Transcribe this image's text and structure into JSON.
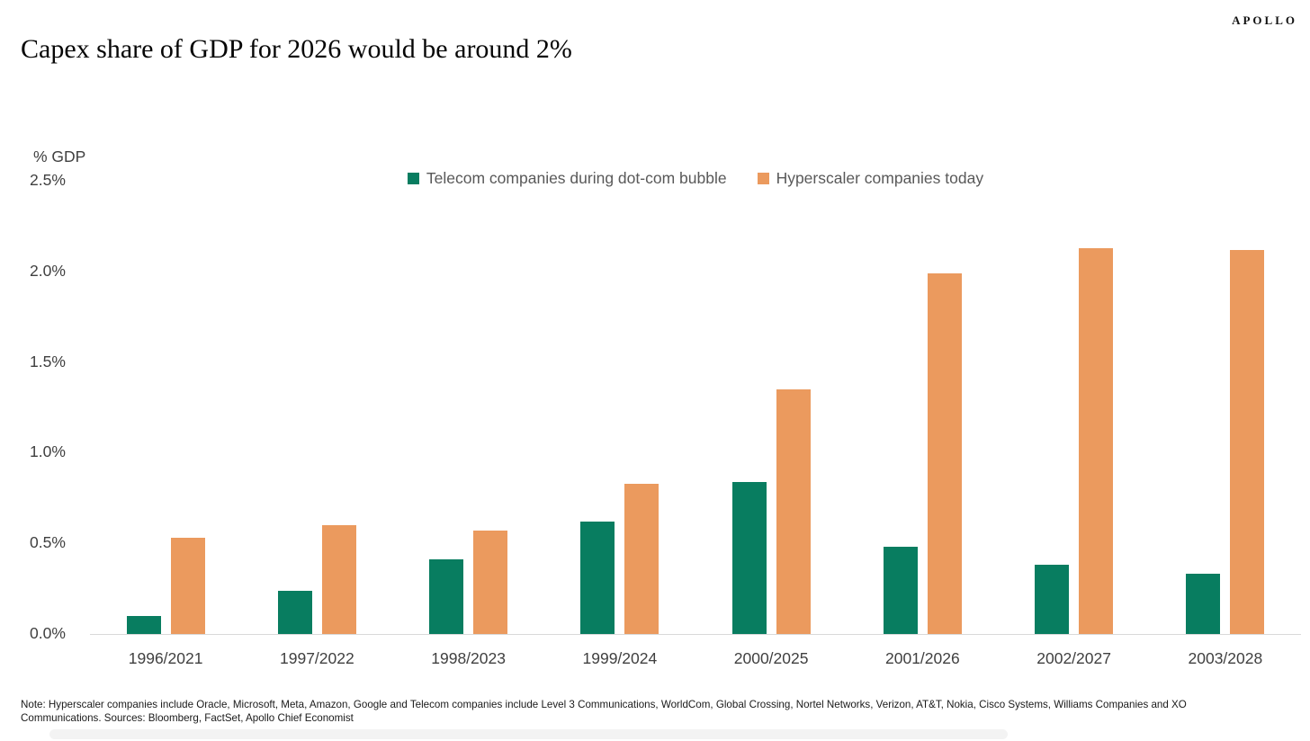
{
  "header": {
    "brand": "APOLLO",
    "title": "Capex share of GDP for 2026 would be around 2%"
  },
  "chart_data": {
    "type": "bar",
    "title": "Capex share of GDP for 2026 would be around 2%",
    "axis_title": "% GDP",
    "categories": [
      "1996/2021",
      "1997/2022",
      "1998/2023",
      "1999/2024",
      "2000/2025",
      "2001/2026",
      "2002/2027",
      "2003/2028"
    ],
    "series": [
      {
        "name": "Telecom companies during dot-com bubble",
        "color": "#087d60",
        "values": [
          0.1,
          0.24,
          0.41,
          0.62,
          0.84,
          0.48,
          0.38,
          0.33
        ]
      },
      {
        "name": "Hyperscaler companies today",
        "color": "#eb9a5e",
        "values": [
          0.53,
          0.6,
          0.57,
          0.83,
          1.35,
          1.99,
          2.13,
          2.12
        ]
      }
    ],
    "ylabel": "% GDP",
    "ylim": [
      0,
      2.5
    ],
    "y_ticks": [
      "2.5%",
      "2.0%",
      "1.5%",
      "1.0%",
      "0.5%",
      "0.0%"
    ],
    "grid": false,
    "legend_position": "top"
  },
  "footnote": {
    "text": "Note: Hyperscaler companies include Oracle, Microsoft, Meta, Amazon, Google and Telecom companies include  Level 3 Communications, WorldCom, Global Crossing, Nortel Networks, Verizon, AT&T, Nokia, Cisco Systems, Williams Companies and XO Communications. Sources: Bloomberg, FactSet, Apollo Chief Economist"
  },
  "colors": {
    "telecom_green": "#087d60",
    "hyperscaler_orange": "#eb9a5e",
    "axis_line": "#d9d9d9",
    "tick_text": "#404040",
    "legend_text": "#595959"
  }
}
